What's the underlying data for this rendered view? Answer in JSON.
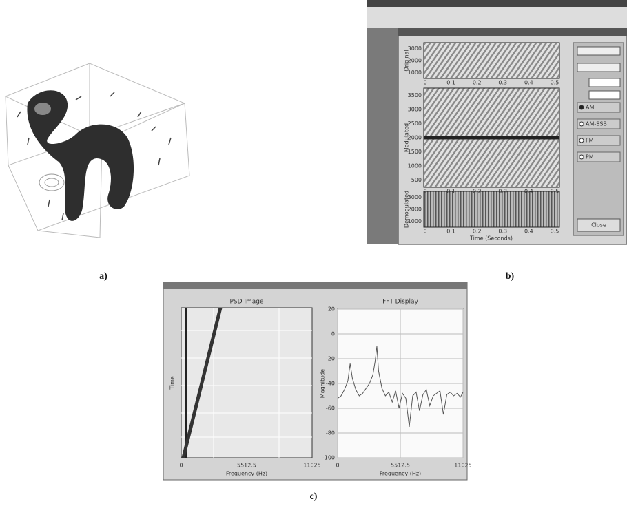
{
  "figure_a": {
    "label": "a)"
  },
  "figure_b": {
    "label": "b)",
    "plots": [
      {
        "ylabel": "Original",
        "yticks": [
          "3000",
          "2000",
          "1000"
        ]
      },
      {
        "ylabel": "Modulated",
        "yticks": [
          "3500",
          "3000",
          "2500",
          "2000",
          "1500",
          "1000",
          "500"
        ]
      },
      {
        "ylabel": "Demodulated",
        "yticks": [
          "3000",
          "2000",
          "1000"
        ]
      }
    ],
    "xticks": [
      "0",
      "0.1",
      "0.2",
      "0.3",
      "0.4",
      "0.5"
    ],
    "xlabel": "Time (Seconds)",
    "options": [
      "AM",
      "AM-SSB",
      "FM",
      "PM"
    ],
    "button": "Close"
  },
  "figure_c": {
    "label": "c)",
    "psd": {
      "title": "PSD Image",
      "ylabel": "Time",
      "xlabel": "Frequency (Hz)",
      "xlim": [
        0,
        11025
      ],
      "xticks": [
        0,
        5512.5,
        11025
      ]
    },
    "fft": {
      "type": "line",
      "title": "FFT Display",
      "ylabel": "Magnitude",
      "xlabel": "Frequency (Hz)",
      "xlim": [
        0,
        11025
      ],
      "ylim": [
        -100,
        20
      ],
      "xticks": [
        0,
        5512.5,
        11025
      ],
      "yticks": [
        20,
        0,
        -20,
        -40,
        -60,
        -80,
        -100
      ],
      "grid": true,
      "color": "#555555",
      "x": [
        0,
        300,
        600,
        900,
        1100,
        1300,
        1600,
        1900,
        2200,
        2500,
        2800,
        3100,
        3300,
        3450,
        3600,
        3900,
        4200,
        4500,
        4800,
        5100,
        5400,
        5700,
        6000,
        6300,
        6600,
        6900,
        7200,
        7500,
        7800,
        8100,
        8400,
        8700,
        9000,
        9300,
        9600,
        9900,
        10200,
        10500,
        10800,
        11025
      ],
      "values": [
        -52,
        -50,
        -45,
        -38,
        -24,
        -36,
        -45,
        -50,
        -48,
        -44,
        -40,
        -33,
        -22,
        -10,
        -30,
        -44,
        -50,
        -47,
        -55,
        -46,
        -60,
        -48,
        -52,
        -75,
        -50,
        -47,
        -62,
        -49,
        -45,
        -58,
        -50,
        -48,
        -46,
        -65,
        -49,
        -47,
        -50,
        -48,
        -51,
        -47
      ]
    }
  }
}
